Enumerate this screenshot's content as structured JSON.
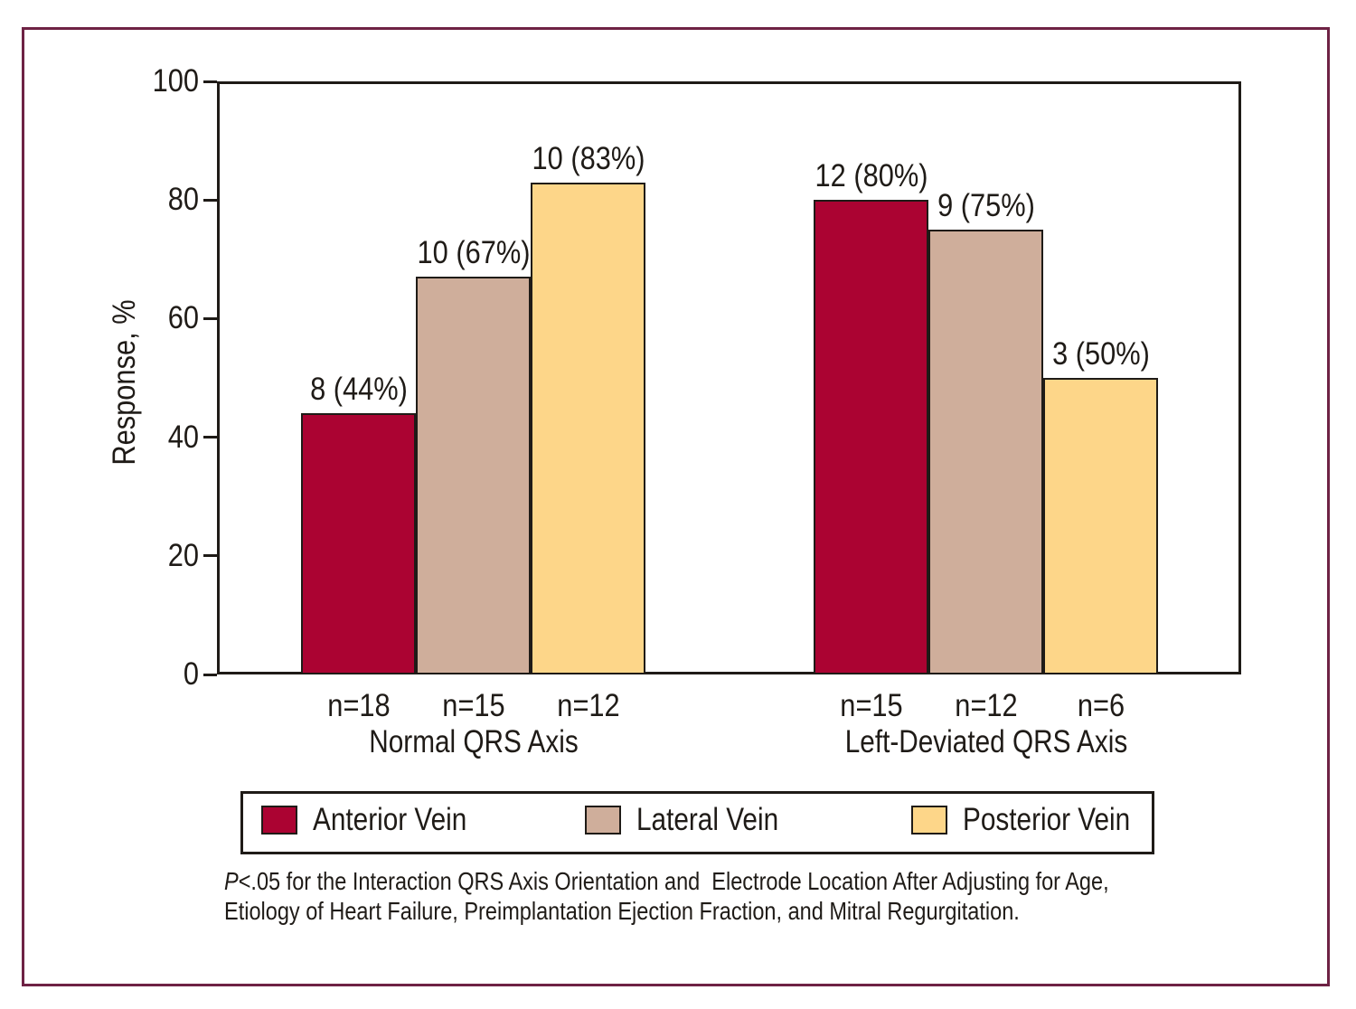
{
  "colors": {
    "anterior": "#AB0332",
    "lateral": "#CFAE9B",
    "posterior": "#FDD689",
    "axis": "#1F1B17",
    "frame": "#6E2244"
  },
  "chart_data": {
    "type": "bar",
    "title": "",
    "xlabel": "",
    "ylabel": "Response, %",
    "ylim": [
      0,
      100
    ],
    "yticks": [
      0,
      20,
      40,
      60,
      80,
      100
    ],
    "grid": false,
    "legend_position": "bottom",
    "groups": [
      {
        "label": "Normal QRS Axis",
        "bars": [
          {
            "series": "Anterior Vein",
            "n": "n=18",
            "value": 44,
            "label": "8 (44%)"
          },
          {
            "series": "Lateral Vein",
            "n": "n=15",
            "value": 67,
            "label": "10 (67%)"
          },
          {
            "series": "Posterior Vein",
            "n": "n=12",
            "value": 83,
            "label": "10 (83%)"
          }
        ]
      },
      {
        "label": "Left-Deviated QRS Axis",
        "bars": [
          {
            "series": "Anterior Vein",
            "n": "n=15",
            "value": 80,
            "label": "12 (80%)"
          },
          {
            "series": "Lateral Vein",
            "n": "n=12",
            "value": 75,
            "label": "9 (75%)"
          },
          {
            "series": "Posterior Vein",
            "n": "n=6",
            "value": 50,
            "label": "3 (50%)"
          }
        ]
      }
    ],
    "legend": [
      {
        "label": "Anterior Vein",
        "color": "#AB0332"
      },
      {
        "label": "Lateral Vein",
        "color": "#CFAE9B"
      },
      {
        "label": "Posterior Vein",
        "color": "#FDD689"
      }
    ]
  },
  "footnote": {
    "p": "P",
    "line1_rest": "<.05 for the Interaction QRS Axis Orientation and  Electrode Location After Adjusting for Age,",
    "line2": "Etiology of Heart Failure, Preimplantation Ejection Fraction, and Mitral Regurgitation."
  }
}
